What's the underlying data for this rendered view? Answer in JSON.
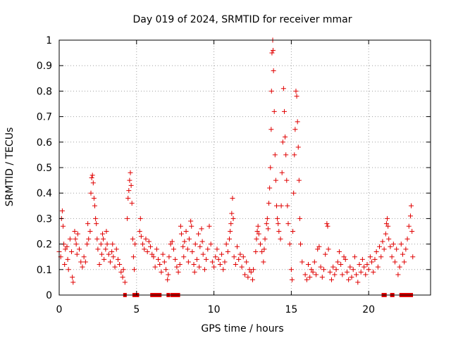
{
  "chart_data": {
    "type": "scatter",
    "title": "Day 019 of 2024, SRMTID for receiver mmar",
    "xlabel": "GPS time / hours",
    "ylabel": "SRMTID / TECUs",
    "xlim": [
      0,
      24
    ],
    "ylim": [
      0,
      1
    ],
    "xticks": [
      0,
      5,
      10,
      15,
      20
    ],
    "xtick_labels": [
      "0",
      "5",
      "10",
      "15",
      "20"
    ],
    "yticks": [
      0,
      0.1,
      0.2,
      0.3,
      0.4,
      0.5,
      0.6,
      0.7,
      0.8,
      0.9,
      1
    ],
    "ytick_labels": [
      "0",
      "0.1",
      "0.2",
      "0.3",
      "0.4",
      "0.5",
      "0.6",
      "0.7",
      "0.8",
      "0.9",
      "1"
    ],
    "grid": true,
    "marker": "plus",
    "color": "#e00000",
    "series": [
      {
        "name": "SRMTID",
        "points": [
          [
            0.0,
            0.17
          ],
          [
            0.1,
            0.15
          ],
          [
            0.15,
            0.3
          ],
          [
            0.2,
            0.33
          ],
          [
            0.25,
            0.27
          ],
          [
            0.3,
            0.2
          ],
          [
            0.35,
            0.12
          ],
          [
            0.4,
            0.18
          ],
          [
            0.5,
            0.19
          ],
          [
            0.55,
            0.14
          ],
          [
            0.6,
            0.1
          ],
          [
            0.7,
            0.22
          ],
          [
            0.8,
            0.17
          ],
          [
            0.85,
            0.07
          ],
          [
            0.9,
            0.05
          ],
          [
            1.0,
            0.25
          ],
          [
            1.05,
            0.22
          ],
          [
            1.1,
            0.2
          ],
          [
            1.15,
            0.16
          ],
          [
            1.2,
            0.24
          ],
          [
            1.3,
            0.18
          ],
          [
            1.4,
            0.13
          ],
          [
            1.5,
            0.11
          ],
          [
            1.6,
            0.15
          ],
          [
            1.7,
            0.13
          ],
          [
            1.8,
            0.2
          ],
          [
            1.85,
            0.28
          ],
          [
            1.9,
            0.22
          ],
          [
            2.0,
            0.25
          ],
          [
            2.05,
            0.4
          ],
          [
            2.1,
            0.46
          ],
          [
            2.15,
            0.47
          ],
          [
            2.2,
            0.44
          ],
          [
            2.25,
            0.38
          ],
          [
            2.3,
            0.35
          ],
          [
            2.35,
            0.3
          ],
          [
            2.4,
            0.28
          ],
          [
            2.45,
            0.22
          ],
          [
            2.5,
            0.18
          ],
          [
            2.6,
            0.12
          ],
          [
            2.7,
            0.2
          ],
          [
            2.75,
            0.16
          ],
          [
            2.8,
            0.24
          ],
          [
            2.85,
            0.22
          ],
          [
            2.9,
            0.14
          ],
          [
            3.0,
            0.18
          ],
          [
            3.05,
            0.25
          ],
          [
            3.1,
            0.2
          ],
          [
            3.2,
            0.16
          ],
          [
            3.3,
            0.13
          ],
          [
            3.4,
            0.17
          ],
          [
            3.45,
            0.2
          ],
          [
            3.5,
            0.15
          ],
          [
            3.6,
            0.11
          ],
          [
            3.7,
            0.18
          ],
          [
            3.8,
            0.14
          ],
          [
            3.9,
            0.12
          ],
          [
            4.0,
            0.09
          ],
          [
            4.1,
            0.07
          ],
          [
            4.15,
            0.1
          ],
          [
            4.25,
            0.05
          ],
          [
            4.4,
            0.3
          ],
          [
            4.45,
            0.38
          ],
          [
            4.5,
            0.41
          ],
          [
            4.55,
            0.45
          ],
          [
            4.6,
            0.48
          ],
          [
            4.65,
            0.43
          ],
          [
            4.7,
            0.36
          ],
          [
            4.75,
            0.22
          ],
          [
            4.8,
            0.15
          ],
          [
            4.85,
            0.1
          ],
          [
            4.9,
            0.2
          ],
          [
            5.2,
            0.25
          ],
          [
            5.25,
            0.3
          ],
          [
            5.3,
            0.23
          ],
          [
            5.4,
            0.2
          ],
          [
            5.5,
            0.18
          ],
          [
            5.6,
            0.22
          ],
          [
            5.7,
            0.17
          ],
          [
            5.8,
            0.21
          ],
          [
            5.9,
            0.19
          ],
          [
            6.0,
            0.16
          ],
          [
            6.1,
            0.15
          ],
          [
            6.2,
            0.11
          ],
          [
            6.3,
            0.18
          ],
          [
            6.4,
            0.14
          ],
          [
            6.5,
            0.12
          ],
          [
            6.6,
            0.09
          ],
          [
            6.7,
            0.16
          ],
          [
            6.8,
            0.13
          ],
          [
            6.9,
            0.1
          ],
          [
            7.0,
            0.06
          ],
          [
            7.05,
            0.08
          ],
          [
            7.1,
            0.15
          ],
          [
            7.2,
            0.2
          ],
          [
            7.3,
            0.21
          ],
          [
            7.4,
            0.18
          ],
          [
            7.5,
            0.14
          ],
          [
            7.6,
            0.11
          ],
          [
            7.7,
            0.09
          ],
          [
            7.8,
            0.12
          ],
          [
            7.85,
            0.27
          ],
          [
            7.9,
            0.24
          ],
          [
            8.0,
            0.19
          ],
          [
            8.05,
            0.15
          ],
          [
            8.1,
            0.21
          ],
          [
            8.2,
            0.25
          ],
          [
            8.3,
            0.18
          ],
          [
            8.35,
            0.13
          ],
          [
            8.4,
            0.22
          ],
          [
            8.5,
            0.29
          ],
          [
            8.55,
            0.27
          ],
          [
            8.6,
            0.17
          ],
          [
            8.7,
            0.12
          ],
          [
            8.75,
            0.09
          ],
          [
            8.8,
            0.2
          ],
          [
            8.9,
            0.14
          ],
          [
            9.0,
            0.24
          ],
          [
            9.05,
            0.11
          ],
          [
            9.1,
            0.19
          ],
          [
            9.2,
            0.26
          ],
          [
            9.25,
            0.21
          ],
          [
            9.3,
            0.16
          ],
          [
            9.4,
            0.1
          ],
          [
            9.5,
            0.14
          ],
          [
            9.6,
            0.18
          ],
          [
            9.7,
            0.27
          ],
          [
            9.8,
            0.2
          ],
          [
            9.9,
            0.13
          ],
          [
            10.0,
            0.11
          ],
          [
            10.1,
            0.15
          ],
          [
            10.2,
            0.18
          ],
          [
            10.3,
            0.14
          ],
          [
            10.4,
            0.12
          ],
          [
            10.5,
            0.16
          ],
          [
            10.6,
            0.1
          ],
          [
            10.7,
            0.13
          ],
          [
            10.8,
            0.2
          ],
          [
            10.9,
            0.17
          ],
          [
            11.0,
            0.22
          ],
          [
            11.05,
            0.25
          ],
          [
            11.1,
            0.28
          ],
          [
            11.15,
            0.32
          ],
          [
            11.2,
            0.38
          ],
          [
            11.25,
            0.3
          ],
          [
            11.3,
            0.15
          ],
          [
            11.4,
            0.12
          ],
          [
            11.5,
            0.19
          ],
          [
            11.6,
            0.14
          ],
          [
            11.7,
            0.16
          ],
          [
            11.8,
            0.11
          ],
          [
            11.9,
            0.15
          ],
          [
            12.0,
            0.08
          ],
          [
            12.1,
            0.13
          ],
          [
            12.2,
            0.07
          ],
          [
            12.3,
            0.1
          ],
          [
            12.4,
            0.09
          ],
          [
            12.5,
            0.06
          ],
          [
            12.55,
            0.1
          ],
          [
            12.7,
            0.17
          ],
          [
            12.75,
            0.22
          ],
          [
            12.8,
            0.25
          ],
          [
            12.85,
            0.27
          ],
          [
            12.9,
            0.24
          ],
          [
            13.0,
            0.2
          ],
          [
            13.1,
            0.17
          ],
          [
            13.2,
            0.13
          ],
          [
            13.25,
            0.18
          ],
          [
            13.3,
            0.22
          ],
          [
            13.4,
            0.28
          ],
          [
            13.45,
            0.3
          ],
          [
            13.5,
            0.26
          ],
          [
            13.55,
            0.36
          ],
          [
            13.6,
            0.42
          ],
          [
            13.65,
            0.5
          ],
          [
            13.7,
            0.65
          ],
          [
            13.72,
            0.8
          ],
          [
            13.75,
            0.95
          ],
          [
            13.8,
            1.0
          ],
          [
            13.82,
            0.96
          ],
          [
            13.85,
            0.88
          ],
          [
            13.9,
            0.72
          ],
          [
            13.95,
            0.55
          ],
          [
            14.0,
            0.45
          ],
          [
            14.05,
            0.35
          ],
          [
            14.1,
            0.3
          ],
          [
            14.15,
            0.28
          ],
          [
            14.2,
            0.25
          ],
          [
            14.3,
            0.22
          ],
          [
            14.35,
            0.35
          ],
          [
            14.4,
            0.48
          ],
          [
            14.45,
            0.6
          ],
          [
            14.5,
            0.81
          ],
          [
            14.55,
            0.72
          ],
          [
            14.6,
            0.62
          ],
          [
            14.65,
            0.55
          ],
          [
            14.7,
            0.45
          ],
          [
            14.75,
            0.35
          ],
          [
            14.8,
            0.28
          ],
          [
            14.9,
            0.2
          ],
          [
            15.0,
            0.1
          ],
          [
            15.05,
            0.06
          ],
          [
            15.1,
            0.25
          ],
          [
            15.15,
            0.4
          ],
          [
            15.2,
            0.55
          ],
          [
            15.25,
            0.65
          ],
          [
            15.3,
            0.8
          ],
          [
            15.35,
            0.78
          ],
          [
            15.4,
            0.68
          ],
          [
            15.45,
            0.58
          ],
          [
            15.5,
            0.45
          ],
          [
            15.55,
            0.3
          ],
          [
            15.6,
            0.2
          ],
          [
            15.7,
            0.13
          ],
          [
            15.9,
            0.08
          ],
          [
            16.0,
            0.06
          ],
          [
            16.1,
            0.12
          ],
          [
            16.2,
            0.07
          ],
          [
            16.3,
            0.1
          ],
          [
            16.4,
            0.09
          ],
          [
            16.5,
            0.13
          ],
          [
            16.6,
            0.08
          ],
          [
            16.7,
            0.18
          ],
          [
            16.8,
            0.19
          ],
          [
            16.9,
            0.11
          ],
          [
            17.0,
            0.07
          ],
          [
            17.1,
            0.1
          ],
          [
            17.2,
            0.16
          ],
          [
            17.3,
            0.28
          ],
          [
            17.35,
            0.27
          ],
          [
            17.4,
            0.18
          ],
          [
            17.5,
            0.09
          ],
          [
            17.6,
            0.06
          ],
          [
            17.7,
            0.11
          ],
          [
            17.8,
            0.08
          ],
          [
            17.9,
            0.1
          ],
          [
            18.0,
            0.13
          ],
          [
            18.1,
            0.17
          ],
          [
            18.2,
            0.12
          ],
          [
            18.3,
            0.08
          ],
          [
            18.4,
            0.15
          ],
          [
            18.5,
            0.14
          ],
          [
            18.6,
            0.09
          ],
          [
            18.7,
            0.06
          ],
          [
            18.8,
            0.11
          ],
          [
            18.9,
            0.07
          ],
          [
            19.0,
            0.1
          ],
          [
            19.1,
            0.15
          ],
          [
            19.2,
            0.08
          ],
          [
            19.3,
            0.05
          ],
          [
            19.4,
            0.12
          ],
          [
            19.5,
            0.09
          ],
          [
            19.6,
            0.14
          ],
          [
            19.7,
            0.11
          ],
          [
            19.8,
            0.08
          ],
          [
            19.9,
            0.12
          ],
          [
            20.0,
            0.1
          ],
          [
            20.1,
            0.15
          ],
          [
            20.2,
            0.13
          ],
          [
            20.3,
            0.09
          ],
          [
            20.4,
            0.14
          ],
          [
            20.5,
            0.17
          ],
          [
            20.6,
            0.11
          ],
          [
            20.7,
            0.19
          ],
          [
            20.8,
            0.15
          ],
          [
            20.9,
            0.21
          ],
          [
            21.0,
            0.18
          ],
          [
            21.1,
            0.24
          ],
          [
            21.15,
            0.28
          ],
          [
            21.2,
            0.3
          ],
          [
            21.25,
            0.27
          ],
          [
            21.3,
            0.22
          ],
          [
            21.4,
            0.19
          ],
          [
            21.5,
            0.15
          ],
          [
            21.6,
            0.2
          ],
          [
            21.7,
            0.13
          ],
          [
            21.8,
            0.18
          ],
          [
            21.9,
            0.08
          ],
          [
            22.0,
            0.11
          ],
          [
            22.1,
            0.2
          ],
          [
            22.2,
            0.16
          ],
          [
            22.3,
            0.13
          ],
          [
            22.4,
            0.18
          ],
          [
            22.5,
            0.22
          ],
          [
            22.6,
            0.27
          ],
          [
            22.7,
            0.31
          ],
          [
            22.75,
            0.35
          ],
          [
            22.8,
            0.25
          ],
          [
            22.85,
            0.15
          ]
        ],
        "zero_points": [
          4.25,
          4.85,
          5.0,
          5.05,
          6.0,
          6.1,
          6.2,
          6.4,
          6.5,
          7.05,
          7.3,
          7.4,
          7.5,
          7.55,
          7.6,
          7.7,
          20.95,
          21.0,
          21.05,
          21.5,
          21.55,
          22.1,
          22.2,
          22.3,
          22.4,
          22.5,
          22.6,
          22.7,
          22.75
        ]
      }
    ]
  }
}
